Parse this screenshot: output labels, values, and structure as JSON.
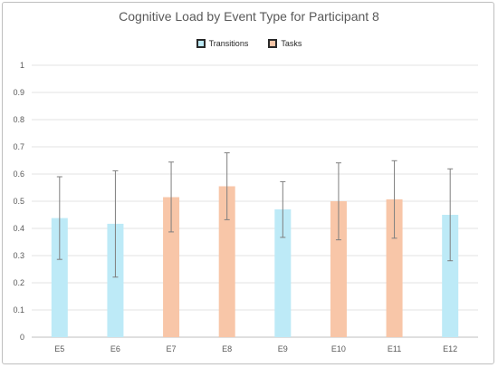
{
  "chart_data": {
    "type": "bar",
    "title": "Cognitive Load by Event Type for Participant 8",
    "categories": [
      "E5",
      "E6",
      "E7",
      "E8",
      "E9",
      "E10",
      "E11",
      "E12"
    ],
    "values": [
      0.438,
      0.417,
      0.515,
      0.555,
      0.47,
      0.5,
      0.507,
      0.45
    ],
    "error_low": [
      0.286,
      0.221,
      0.387,
      0.432,
      0.367,
      0.358,
      0.364,
      0.281
    ],
    "error_high": [
      0.59,
      0.612,
      0.644,
      0.678,
      0.572,
      0.641,
      0.649,
      0.619
    ],
    "bar_group": [
      "Transitions",
      "Transitions",
      "Tasks",
      "Tasks",
      "Transitions",
      "Tasks",
      "Tasks",
      "Transitions"
    ],
    "legend": [
      {
        "name": "Transitions",
        "color": "#bdeaf7"
      },
      {
        "name": "Tasks",
        "color": "#f8c6a8"
      }
    ],
    "ylim": [
      0,
      1
    ],
    "yticks": [
      "0",
      "0.1",
      "0.2",
      "0.3",
      "0.4",
      "0.5",
      "0.6",
      "0.7",
      "0.8",
      "0.9",
      "1"
    ],
    "grid": true,
    "legend_position": "top-center",
    "xlabel": "",
    "ylabel": ""
  }
}
